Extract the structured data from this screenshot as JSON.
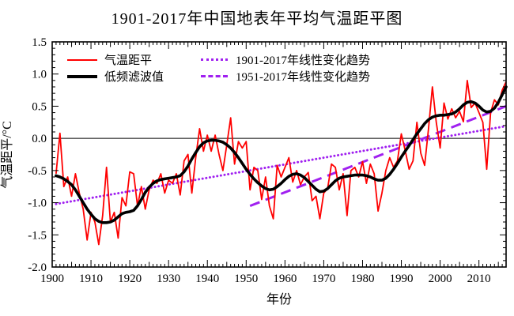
{
  "title": "1901-2017年中国地表年平均气温距平图",
  "legend": {
    "anomaly": "气温距平",
    "filtered": "低频滤波值",
    "trend_full": "1901-2017年线性变化趋势",
    "trend_recent": "1951-2017年线性变化趋势"
  },
  "colors": {
    "anomaly_line": "#ff0000",
    "filtered_line": "#000000",
    "trend_lines": "#a020f0",
    "axis": "#000000"
  },
  "chart_data": {
    "type": "line",
    "title": "1901-2017年中国地表年平均气温距平图",
    "xlabel": "年份",
    "ylabel": "气温距平/°C",
    "xlim": [
      1900,
      2017
    ],
    "ylim": [
      -2.0,
      1.5
    ],
    "grid": false,
    "zero_line": 0,
    "legend_position": "top-left-inside",
    "x_tick_labels": [
      "1900",
      "1910",
      "1920",
      "1930",
      "1940",
      "1950",
      "1960",
      "1970",
      "1980",
      "1990",
      "2000",
      "2010"
    ],
    "x_tick_values": [
      1900,
      1910,
      1920,
      1930,
      1940,
      1950,
      1960,
      1970,
      1980,
      1990,
      2000,
      2010
    ],
    "y_tick_labels": [
      "1.5",
      "1.0",
      "0.5",
      "0.0",
      "-0.5",
      "-1.0",
      "-1.5",
      "-2.0"
    ],
    "y_tick_values": [
      1.5,
      1.0,
      0.5,
      0.0,
      -0.5,
      -1.0,
      -1.5,
      -2.0
    ],
    "x_minor_step": 1,
    "y_minor_step": 0.1,
    "years_start": 1901,
    "series": [
      {
        "name": "气温距平",
        "style": "solid",
        "color": "#ff0000",
        "values": [
          -0.55,
          0.08,
          -0.75,
          -0.6,
          -0.9,
          -0.55,
          -0.85,
          -1.1,
          -1.58,
          -1.15,
          -1.3,
          -1.65,
          -1.2,
          -0.45,
          -1.3,
          -1.15,
          -1.55,
          -0.92,
          -1.05,
          -0.52,
          -0.55,
          -1.05,
          -0.75,
          -1.1,
          -0.8,
          -0.65,
          -0.7,
          -0.55,
          -0.85,
          -0.65,
          -0.7,
          -0.55,
          -0.88,
          -0.35,
          -0.25,
          -0.85,
          -0.3,
          0.15,
          -0.2,
          0.05,
          -0.2,
          0.05,
          -0.25,
          -0.5,
          -0.1,
          0.32,
          -0.4,
          -0.05,
          -0.15,
          -0.05,
          -0.8,
          -0.45,
          -0.5,
          -0.95,
          -0.6,
          -1.05,
          -1.25,
          -0.42,
          -0.6,
          -0.45,
          -0.3,
          -0.68,
          -0.5,
          -0.72,
          -0.6,
          -0.53,
          -0.97,
          -0.9,
          -1.25,
          -0.85,
          -0.78,
          -0.4,
          -0.45,
          -0.8,
          -0.55,
          -1.2,
          -0.5,
          -0.45,
          -0.6,
          -0.36,
          -0.7,
          -0.4,
          -0.55,
          -1.13,
          -0.85,
          -0.5,
          -0.3,
          -0.45,
          -0.35,
          0.07,
          -0.19,
          -0.48,
          -0.35,
          0.25,
          -0.23,
          -0.42,
          0.15,
          0.8,
          0.25,
          -0.15,
          0.55,
          0.3,
          0.46,
          0.32,
          0.42,
          0.26,
          0.9,
          0.48,
          0.55,
          0.4,
          0.25,
          -0.48,
          0.4,
          0.6,
          0.52,
          0.75,
          0.88
        ]
      },
      {
        "name": "低频滤波值",
        "style": "solid-thick",
        "color": "#000000",
        "values": [
          -0.58,
          -0.6,
          -0.63,
          -0.67,
          -0.72,
          -0.8,
          -0.9,
          -1.0,
          -1.1,
          -1.18,
          -1.25,
          -1.29,
          -1.31,
          -1.31,
          -1.3,
          -1.27,
          -1.22,
          -1.17,
          -1.15,
          -1.14,
          -1.12,
          -1.05,
          -0.95,
          -0.84,
          -0.76,
          -0.7,
          -0.66,
          -0.64,
          -0.63,
          -0.62,
          -0.61,
          -0.6,
          -0.58,
          -0.52,
          -0.43,
          -0.32,
          -0.22,
          -0.13,
          -0.07,
          -0.04,
          -0.03,
          -0.03,
          -0.04,
          -0.06,
          -0.1,
          -0.15,
          -0.22,
          -0.3,
          -0.39,
          -0.48,
          -0.56,
          -0.63,
          -0.69,
          -0.74,
          -0.78,
          -0.8,
          -0.79,
          -0.75,
          -0.7,
          -0.64,
          -0.59,
          -0.56,
          -0.55,
          -0.57,
          -0.61,
          -0.67,
          -0.73,
          -0.79,
          -0.83,
          -0.82,
          -0.78,
          -0.72,
          -0.66,
          -0.62,
          -0.6,
          -0.59,
          -0.58,
          -0.57,
          -0.57,
          -0.57,
          -0.58,
          -0.6,
          -0.63,
          -0.65,
          -0.65,
          -0.62,
          -0.56,
          -0.48,
          -0.39,
          -0.29,
          -0.2,
          -0.11,
          -0.02,
          0.07,
          0.15,
          0.23,
          0.29,
          0.33,
          0.35,
          0.36,
          0.36,
          0.37,
          0.38,
          0.41,
          0.46,
          0.52,
          0.56,
          0.57,
          0.55,
          0.5,
          0.44,
          0.41,
          0.42,
          0.47,
          0.56,
          0.68,
          0.8
        ]
      },
      {
        "name": "1901-2017年线性变化趋势",
        "style": "dotted",
        "color": "#a020f0",
        "points": [
          [
            1901,
            -1.02
          ],
          [
            2017,
            0.19
          ]
        ]
      },
      {
        "name": "1951-2017年线性变化趋势",
        "style": "dashed",
        "color": "#a020f0",
        "points": [
          [
            1951,
            -1.05
          ],
          [
            2017,
            0.5
          ]
        ]
      }
    ]
  }
}
